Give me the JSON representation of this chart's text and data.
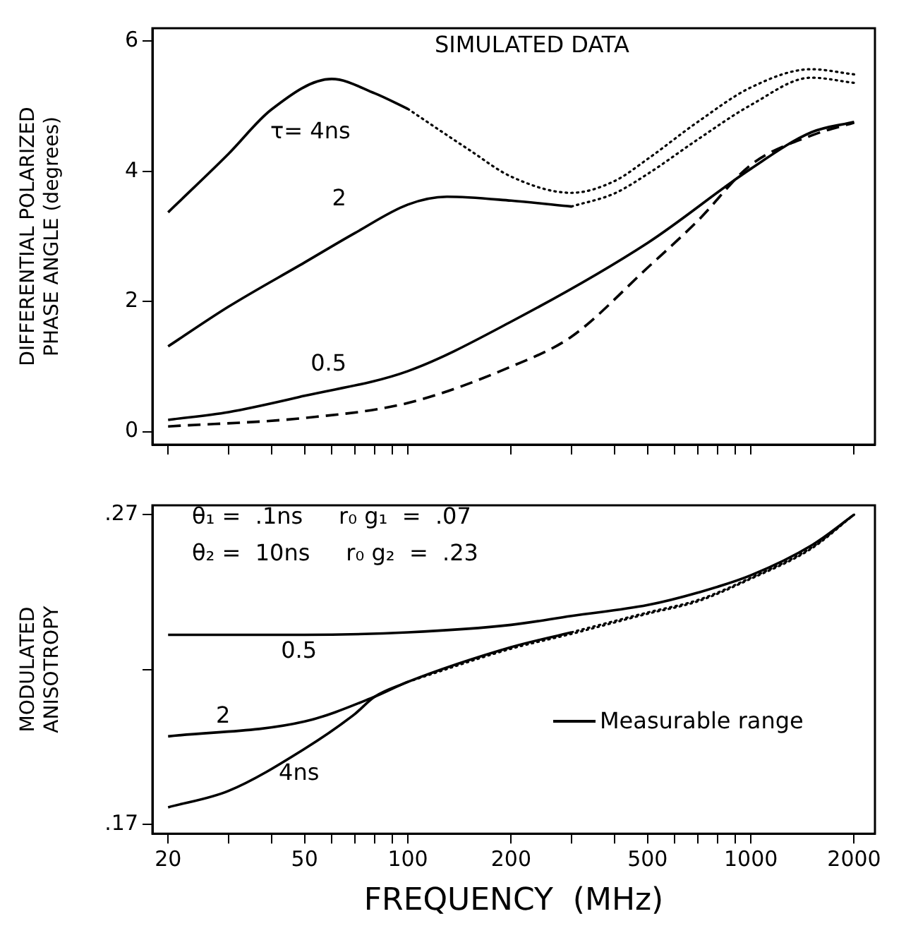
{
  "chart_data": [
    {
      "type": "line",
      "ylabel": "DIFFERENTIAL POLARIZED\nPHASE ANGLE (degrees)",
      "log": "x",
      "tick_labels": "y",
      "xlim": [
        18,
        2300
      ],
      "ylim": [
        -0.2,
        6.2
      ],
      "xticks": [
        20,
        {
          "value": 30,
          "label": null
        },
        {
          "value": 40,
          "label": null
        },
        50,
        {
          "value": 60,
          "label": null
        },
        {
          "value": 70,
          "label": null
        },
        {
          "value": 80,
          "label": null
        },
        {
          "value": 90,
          "label": null
        },
        100,
        200,
        {
          "value": 300,
          "label": null
        },
        {
          "value": 400,
          "label": null
        },
        500,
        {
          "value": 600,
          "label": null
        },
        {
          "value": 700,
          "label": null
        },
        {
          "value": 800,
          "label": null
        },
        {
          "value": 900,
          "label": null
        },
        1000,
        2000
      ],
      "yticks": [
        0,
        2,
        4,
        6
      ],
      "annotations": [
        "SIMULATED DATA"
      ],
      "series": [
        {
          "name": "τ= 4ns",
          "color": "#000000",
          "line_style": "solid",
          "x": [
            20,
            30,
            40,
            60,
            80,
            100
          ],
          "values": [
            3.37,
            4.27,
            4.95,
            5.42,
            5.2,
            4.96
          ]
        },
        {
          "color": "#000000",
          "line_style": "dotted",
          "x": [
            100,
            150,
            200,
            300,
            400,
            500,
            700,
            1000,
            1500,
            2000
          ],
          "values": [
            4.96,
            4.34,
            3.92,
            3.67,
            3.85,
            4.19,
            4.76,
            5.29,
            5.57,
            5.49
          ]
        },
        {
          "name": "2",
          "color": "#000000",
          "line_style": "solid",
          "x": [
            20,
            30,
            50,
            70,
            100,
            130,
            200,
            300
          ],
          "values": [
            1.31,
            1.92,
            2.6,
            3.05,
            3.49,
            3.61,
            3.55,
            3.46
          ]
        },
        {
          "color": "#000000",
          "line_style": "dotted",
          "x": [
            300,
            400,
            500,
            700,
            1000,
            1500,
            2000
          ],
          "values": [
            3.46,
            3.66,
            3.96,
            4.49,
            5.02,
            5.44,
            5.36
          ]
        },
        {
          "name": "0.5",
          "color": "#000000",
          "line_style": "solid",
          "x": [
            20,
            30,
            50,
            100,
            200,
            500,
            1000,
            1500,
            2000
          ],
          "values": [
            0.18,
            0.3,
            0.55,
            0.93,
            1.69,
            2.9,
            4.04,
            4.6,
            4.76
          ]
        },
        {
          "color": "#000000",
          "line_style": "dashed",
          "x": [
            20,
            50,
            100,
            200,
            300,
            500,
            700,
            1000,
            1500,
            2000
          ],
          "values": [
            0.08,
            0.21,
            0.44,
            1.0,
            1.46,
            2.52,
            3.24,
            4.1,
            4.55,
            4.75
          ]
        }
      ]
    },
    {
      "type": "line",
      "xlabel": "FREQUENCY  (MHz)",
      "ylabel": "MODULATED\nANISOTROPY",
      "log": "x",
      "xlim": [
        18,
        2300
      ],
      "ylim": [
        0.167,
        0.273
      ],
      "xticks": [
        20,
        {
          "value": 30,
          "label": null
        },
        {
          "value": 40,
          "label": null
        },
        50,
        {
          "value": 60,
          "label": null
        },
        {
          "value": 70,
          "label": null
        },
        {
          "value": 80,
          "label": null
        },
        {
          "value": 90,
          "label": null
        },
        100,
        200,
        {
          "value": 300,
          "label": null
        },
        {
          "value": 400,
          "label": null
        },
        500,
        {
          "value": 600,
          "label": null
        },
        {
          "value": 700,
          "label": null
        },
        {
          "value": 800,
          "label": null
        },
        {
          "value": 900,
          "label": null
        },
        1000,
        2000
      ],
      "yticks": [
        {
          "value": 0.17,
          "label": ".17"
        },
        {
          "value": 0.22,
          "label": null
        },
        {
          "value": 0.27,
          "label": ".27"
        }
      ],
      "annotations": [
        "θ₁ =  .1ns     r₀ g₁  =  .07",
        "θ₂ =  10ns     r₀ g₂  =  .23",
        "Measurable range"
      ],
      "series": [
        {
          "name": "0.5",
          "color": "#000000",
          "line_style": "solid",
          "x": [
            20,
            50,
            100,
            200,
            300,
            500,
            700,
            1000,
            1500,
            2000
          ],
          "values": [
            0.2312,
            0.2312,
            0.232,
            0.2344,
            0.2373,
            0.2408,
            0.2448,
            0.2504,
            0.26,
            0.27
          ]
        },
        {
          "name": "2",
          "color": "#000000",
          "line_style": "solid",
          "x": [
            20,
            50,
            80,
            100,
            200,
            300
          ],
          "values": [
            0.1984,
            0.2032,
            0.2112,
            0.216,
            0.2272,
            0.232
          ]
        },
        {
          "color": "#000000",
          "line_style": "dotted",
          "x": [
            300,
            500,
            700,
            1000,
            1500,
            2000
          ],
          "values": [
            0.232,
            0.2384,
            0.2424,
            0.2496,
            0.2593,
            0.27
          ]
        },
        {
          "name": "4ns",
          "color": "#000000",
          "line_style": "solid",
          "x": [
            20,
            30,
            50,
            70,
            80,
            100
          ],
          "values": [
            0.1755,
            0.1808,
            0.1944,
            0.2056,
            0.2112,
            0.216
          ]
        },
        {
          "color": "#000000",
          "line_style": "dotted",
          "x": [
            100,
            200,
            300,
            500,
            700,
            1000,
            1500,
            2000
          ],
          "values": [
            0.216,
            0.2267,
            0.2315,
            0.238,
            0.242,
            0.2493,
            0.259,
            0.27
          ]
        }
      ]
    }
  ]
}
